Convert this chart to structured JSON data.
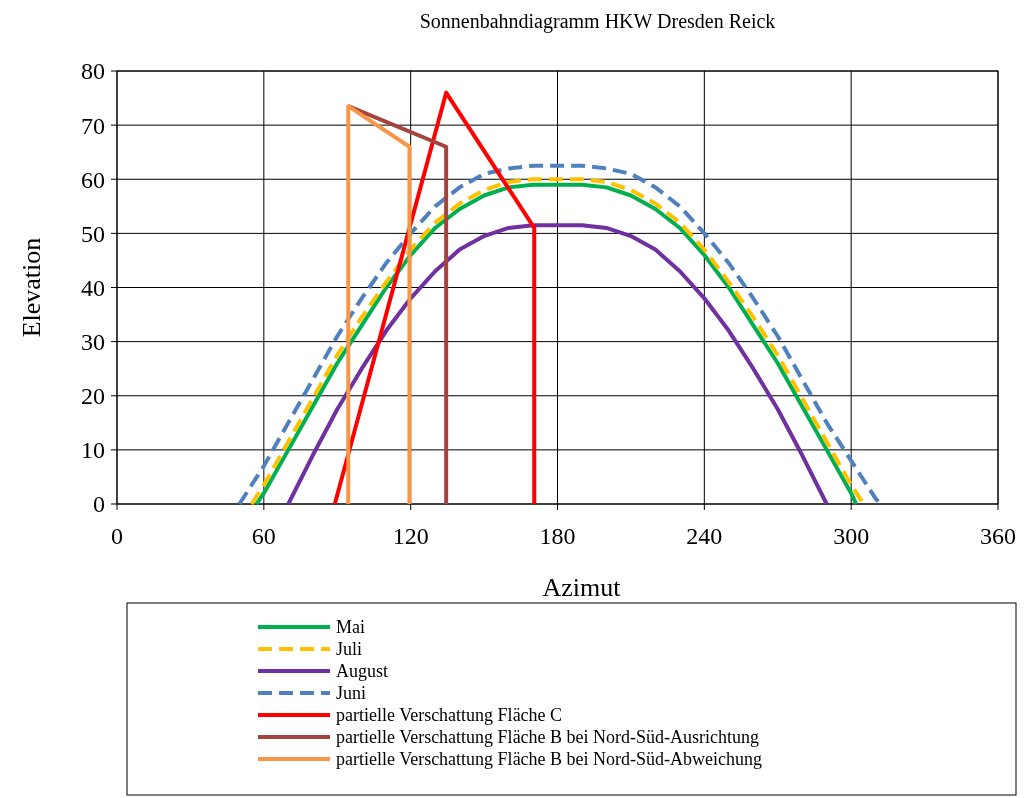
{
  "chart_data": {
    "type": "line",
    "title": "Sonnenbahndiagramm HKW Dresden Reick",
    "xlabel": "Azimut",
    "ylabel": "Elevation",
    "xlim": [
      0,
      360
    ],
    "xticks": [
      0,
      60,
      120,
      180,
      240,
      300,
      360
    ],
    "ylim": [
      0,
      80
    ],
    "yticks": [
      0,
      10,
      20,
      30,
      40,
      50,
      60,
      70,
      80
    ],
    "grid": true,
    "legend": "bottom",
    "marker": "none",
    "series": [
      {
        "name": "Mai",
        "color": "#00b050",
        "line_style": "solid",
        "x": [
          57,
          60,
          70,
          80,
          90,
          100,
          110,
          120,
          130,
          140,
          150,
          160,
          170,
          180,
          190,
          200,
          210,
          220,
          230,
          240,
          250,
          260,
          270,
          280,
          290,
          300,
          302
        ],
        "values": [
          0,
          2,
          10,
          18,
          26,
          33,
          40,
          46,
          51,
          54.5,
          57,
          58.5,
          59,
          59,
          59,
          58.5,
          57,
          54.5,
          51,
          46,
          40,
          33,
          26,
          18,
          10,
          2,
          0
        ]
      },
      {
        "name": "Juli",
        "color": "#ffc000",
        "line_style": "dashed",
        "x": [
          55,
          60,
          70,
          80,
          90,
          100,
          110,
          120,
          130,
          140,
          150,
          160,
          170,
          180,
          190,
          200,
          210,
          220,
          230,
          240,
          250,
          260,
          270,
          280,
          290,
          300,
          305
        ],
        "values": [
          0,
          3.5,
          11.5,
          19.5,
          27.5,
          34.5,
          41,
          47,
          52,
          55.5,
          58,
          59.5,
          60,
          60,
          60,
          59.5,
          58,
          55.5,
          52,
          47,
          41,
          34.5,
          27.5,
          19.5,
          11.5,
          3.5,
          0
        ]
      },
      {
        "name": "August",
        "color": "#7030a0",
        "line_style": "solid",
        "x": [
          70,
          80,
          90,
          100,
          110,
          120,
          130,
          140,
          150,
          160,
          170,
          180,
          190,
          200,
          210,
          220,
          230,
          240,
          250,
          260,
          270,
          280,
          290
        ],
        "values": [
          0,
          9,
          17.5,
          25,
          32,
          38,
          43,
          47,
          49.5,
          51,
          51.5,
          51.5,
          51.5,
          51,
          49.5,
          47,
          43,
          38,
          32,
          25,
          17.5,
          9,
          0
        ]
      },
      {
        "name": "Juni",
        "color": "#4f81bd",
        "line_style": "dashed",
        "x": [
          50,
          60,
          70,
          80,
          90,
          100,
          110,
          120,
          130,
          140,
          150,
          160,
          170,
          180,
          190,
          200,
          210,
          220,
          230,
          240,
          250,
          260,
          270,
          280,
          290,
          300,
          310,
          312
        ],
        "values": [
          0,
          7,
          15,
          23,
          31,
          38,
          44.5,
          50,
          55,
          58.5,
          61,
          62,
          62.5,
          62.5,
          62.5,
          62,
          61,
          58.5,
          55,
          50,
          44.5,
          38,
          31,
          23,
          15,
          8,
          1,
          0
        ]
      },
      {
        "name": "partielle Verschattung Fläche C",
        "color": "#ff0000",
        "line_style": "solid",
        "x": [
          89,
          134.5,
          170.5,
          170.5
        ],
        "values": [
          0,
          76,
          51,
          0
        ]
      },
      {
        "name": "partielle Verschattung Fläche B bei Nord-Süd-Ausrichtung",
        "color": "#a5433e",
        "line_style": "solid",
        "x": [
          94.5,
          134.5,
          134.5
        ],
        "values": [
          73.5,
          66,
          0
        ]
      },
      {
        "name": "partielle Verschattung Fläche B bei Nord-Süd-Abweichung",
        "color": "#f79646",
        "line_style": "solid",
        "x": [
          94.5,
          94.5,
          119.5,
          119.5
        ],
        "values": [
          0,
          73.5,
          66,
          0
        ]
      }
    ]
  }
}
